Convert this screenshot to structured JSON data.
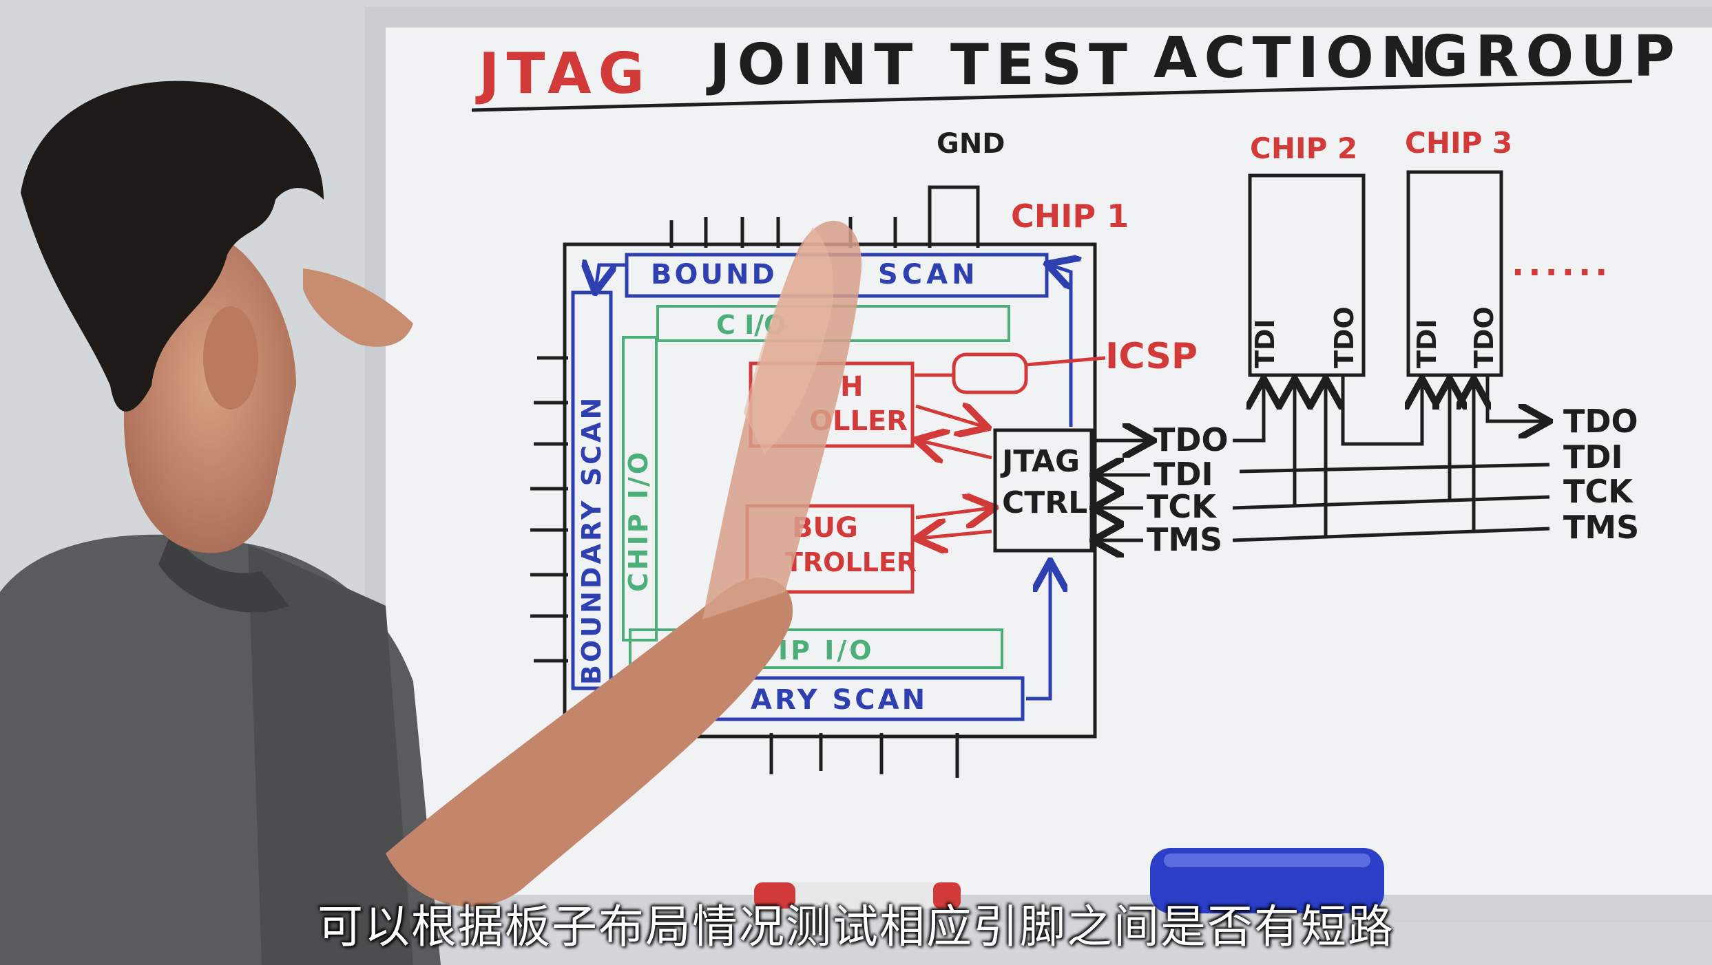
{
  "board": {
    "title": {
      "jtag": "JTAG",
      "joint": "JOINT",
      "test": "TEST",
      "action": "ACTION",
      "group": "GROUP"
    },
    "gnd_label": "GND",
    "chip1_label": "CHIP 1",
    "chip2_label": "CHIP 2",
    "chip3_label": "CHIP 3",
    "ellipsis": "......",
    "boundary_scan_top": "BOUND",
    "boundary_scan_top_right": "SCAN",
    "chip_io_top": "C   I/O",
    "boundary_scan_left": "BOUNDARY SCAN",
    "chip_io_left": "CHIP I/O",
    "flash_ctrl_line1": "H",
    "flash_ctrl_line2": "OLLER",
    "debug_ctrl_line1": "BUG",
    "debug_ctrl_line2": "TROLLER",
    "chip_io_bottom": "IP I/O",
    "boundary_scan_bottom": "ARY SCAN",
    "icsp_label": "ICSP",
    "jtag_ctrl_line1": "JTAG",
    "jtag_ctrl_line2": "CTRL",
    "signals_chip1": {
      "tdo": "TDO",
      "tdi": "TDI",
      "tck": "TCK",
      "tms": "TMS"
    },
    "chip2_pins": {
      "tdi": "TDI",
      "tdo": "TDO"
    },
    "chip3_pins": {
      "tdi": "TDI",
      "tdo": "TDO"
    },
    "signals_right": {
      "tdo": "TDO",
      "tdi": "TDI",
      "tck": "TCK",
      "tms": "TMS"
    }
  },
  "subtitle": "可以根据板子布局情况测试相应引脚之间是否有短路",
  "colors": {
    "ink_red": "#d23a3a",
    "ink_black": "#1e1e1e",
    "ink_blue": "#2e3fb0",
    "ink_green": "#4caf7a"
  }
}
